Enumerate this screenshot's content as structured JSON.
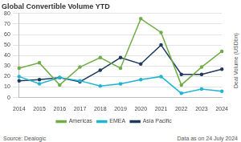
{
  "chart_data": {
    "type": "line",
    "title": "Global Convertible Volume YTD",
    "y_label": "Deal Volume (USDbn)",
    "annotations": [
      "Source: Dealogic",
      "Data as on 24 July 2024"
    ],
    "categories": [
      "2014",
      "2015",
      "2016",
      "2017",
      "2018",
      "2019",
      "2020",
      "2021",
      "2022",
      "2023",
      "2024"
    ],
    "series": [
      {
        "name": "Americas",
        "color": "#70ad47",
        "values": [
          28,
          33,
          12,
          29,
          38,
          28,
          75,
          62,
          12,
          29,
          44
        ]
      },
      {
        "name": "EMEA",
        "color": "#1fb5d0",
        "values": [
          20,
          13,
          19,
          16,
          11,
          13,
          17,
          20,
          4,
          8,
          6
        ]
      },
      {
        "name": "Asia Pacific",
        "color": "#1f3a5f",
        "values": [
          16,
          17,
          19,
          15,
          26,
          38,
          32,
          50,
          22,
          22,
          27
        ]
      }
    ],
    "ylim": [
      0,
      80
    ],
    "yticks": [
      0,
      10,
      20,
      30,
      40,
      50,
      60,
      70,
      80
    ],
    "grid": true,
    "legend": "bottom",
    "marker": "circle"
  }
}
